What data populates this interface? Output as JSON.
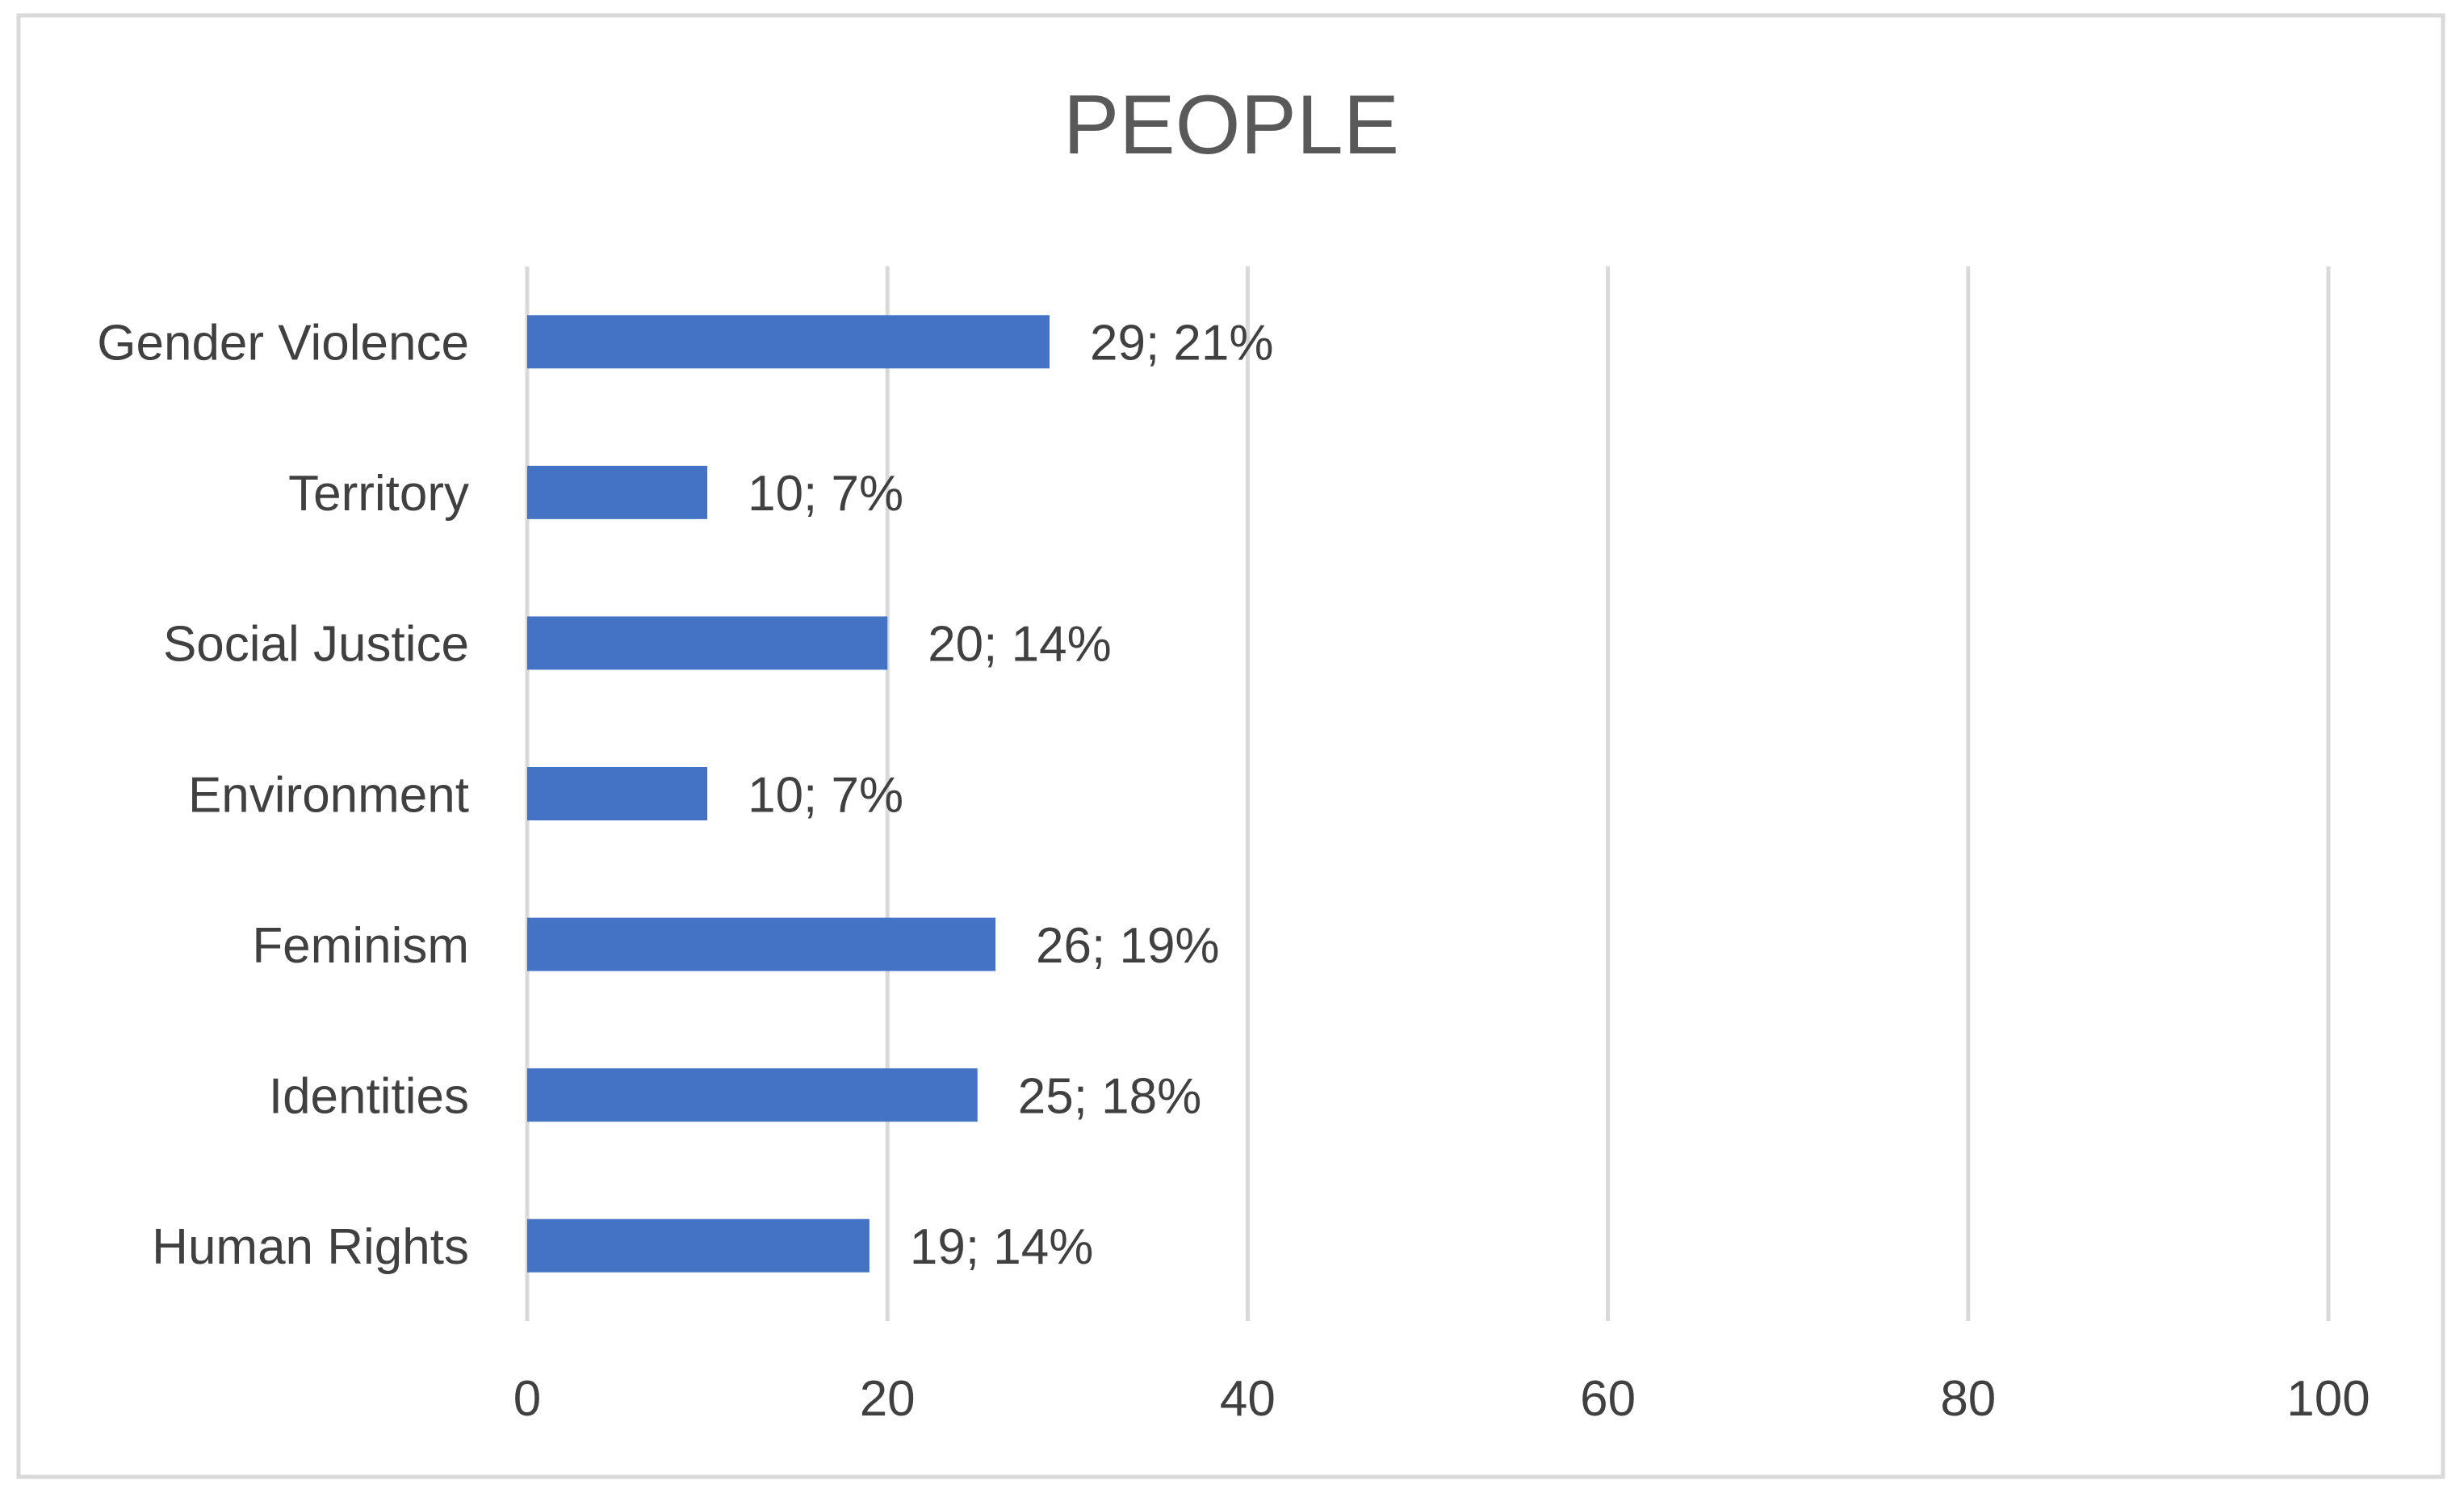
{
  "chart_data": {
    "type": "bar",
    "orientation": "horizontal",
    "title": "PEOPLE",
    "xlabel": "",
    "ylabel": "",
    "xlim": [
      0,
      100
    ],
    "x_ticks": [
      0,
      20,
      40,
      60,
      80,
      100
    ],
    "grid": "vertical",
    "legend": "none",
    "categories": [
      "Gender Violence",
      "Territory",
      "Social Justice",
      "Environment",
      "Feminism",
      "Identities",
      "Human Rights"
    ],
    "values": [
      29,
      10,
      20,
      10,
      26,
      25,
      19
    ],
    "data_labels": [
      "29; 21%",
      "10; 7%",
      "20; 14%",
      "10; 7%",
      "26; 19%",
      "25; 18%",
      "19; 14%"
    ],
    "colors": {
      "bar": "#4472C4",
      "grid": "#D9D9D9",
      "text": "#404040",
      "title": "#595959",
      "border": "#D9D9D9"
    }
  }
}
